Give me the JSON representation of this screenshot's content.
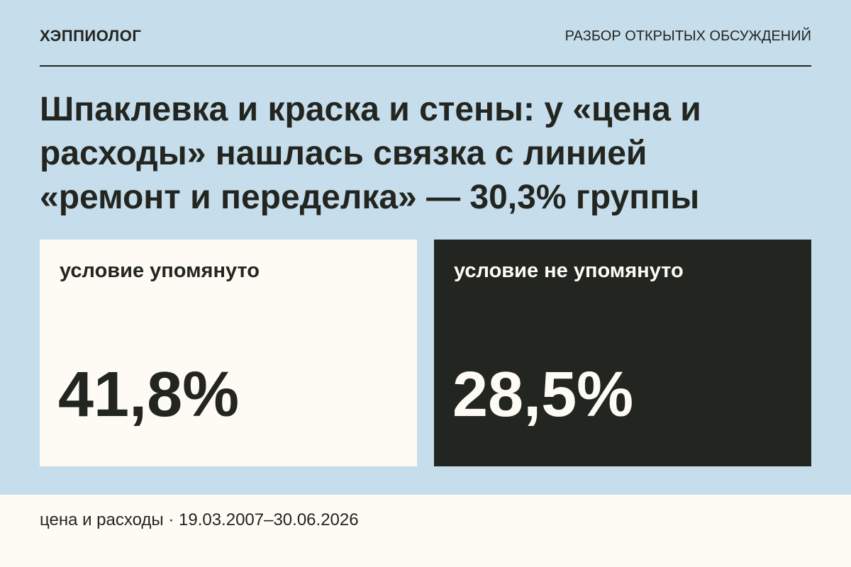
{
  "header": {
    "brand": "ХЭППИОЛОГ",
    "section": "РАЗБОР ОТКРЫТЫХ ОБСУЖДЕНИЙ"
  },
  "title": [
    "Шпаклевка и краска и стены: у «цена и",
    "расходы» нашлась связка с линией",
    "«ремонт и переделка» — 30,3% группы"
  ],
  "cards": [
    {
      "label": "условие упомянуто",
      "value": "41,8%"
    },
    {
      "label": "условие не упомянуто",
      "value": "28,5%"
    }
  ],
  "footer": "цена и расходы · 19.03.2007–30.06.2026"
}
